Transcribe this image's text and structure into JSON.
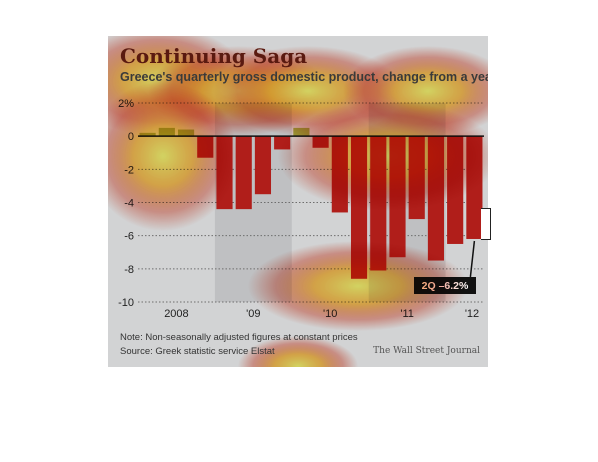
{
  "title": "Continuing Saga",
  "subtitle": "Greece's quarterly gross domestic product, change from a year ago",
  "note": "Note: Non-seasonally adjusted figures at constant prices",
  "source": "Source: Greek statistic service Elstat",
  "credit": "The Wall Street Journal",
  "chart_data": {
    "type": "bar",
    "title": "Continuing Saga",
    "subtitle": "Greece's quarterly gross domestic product, change from a year ago",
    "xlabel": "",
    "ylabel": "",
    "ylim": [
      -10,
      2
    ],
    "yticks": [
      2,
      0,
      -2,
      -4,
      -6,
      -8,
      -10
    ],
    "ytick_labels": [
      "2%",
      "0",
      "-2",
      "-4",
      "-6",
      "-8",
      "-10"
    ],
    "year_labels": [
      "2008",
      "'09",
      "'10",
      "'11",
      "'12"
    ],
    "categories": [
      "2008 Q1",
      "2008 Q2",
      "2008 Q3",
      "2008 Q4",
      "2009 Q1",
      "2009 Q2",
      "2009 Q3",
      "2009 Q4",
      "2010 Q1",
      "2010 Q2",
      "2010 Q3",
      "2010 Q4",
      "2011 Q1",
      "2011 Q2",
      "2011 Q3",
      "2011 Q4",
      "2012 Q1",
      "2012 Q2"
    ],
    "values": [
      0.2,
      0.5,
      0.4,
      -1.3,
      -4.4,
      -4.4,
      -3.5,
      -0.8,
      0.5,
      -0.7,
      -4.6,
      -8.6,
      -8.1,
      -7.3,
      -5.0,
      -7.5,
      -6.5,
      -6.2
    ],
    "grid": true,
    "callout": "2Q –6.2%",
    "colors": {
      "negative": "#b01e1a",
      "positive": "#9aa33a",
      "background": "#d2d3d4",
      "shade": "#bfc0c2"
    }
  }
}
